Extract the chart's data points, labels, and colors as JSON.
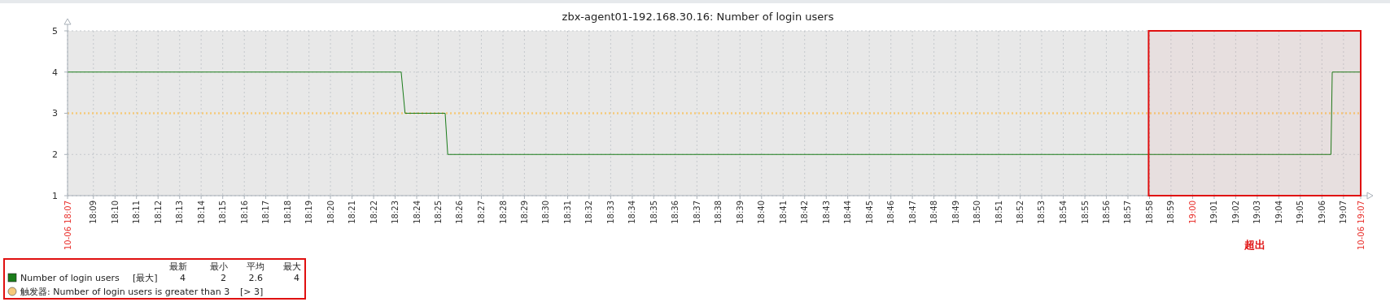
{
  "chart_data": {
    "type": "line",
    "title": "zbx-agent01-192.168.30.16: Number of login users",
    "x": [
      18.13,
      18.388,
      18.391,
      18.422,
      18.424,
      19.107,
      19.108,
      19.13
    ],
    "series": [
      {
        "name": "Number of login users",
        "color": "#1a7c1a",
        "values": [
          4,
          4,
          3,
          3,
          2,
          2,
          4,
          4
        ]
      }
    ],
    "xlim": [
      18.13,
      19.13
    ],
    "xticks": [
      {
        "value": 18.13,
        "label": "10-06 18:07"
      },
      {
        "value": 18.15,
        "label": "18:09"
      },
      {
        "value": 18.1667,
        "label": "18:10"
      },
      {
        "value": 18.1833,
        "label": "18:11"
      },
      {
        "value": 18.2,
        "label": "18:12"
      },
      {
        "value": 18.2167,
        "label": "18:13"
      },
      {
        "value": 18.2333,
        "label": "18:14"
      },
      {
        "value": 18.25,
        "label": "18:15"
      },
      {
        "value": 18.2667,
        "label": "18:16"
      },
      {
        "value": 18.2833,
        "label": "18:17"
      },
      {
        "value": 18.3,
        "label": "18:18"
      },
      {
        "value": 18.3167,
        "label": "18:19"
      },
      {
        "value": 18.3333,
        "label": "18:20"
      },
      {
        "value": 18.35,
        "label": "18:21"
      },
      {
        "value": 18.3667,
        "label": "18:22"
      },
      {
        "value": 18.3833,
        "label": "18:23"
      },
      {
        "value": 18.4,
        "label": "18:24"
      },
      {
        "value": 18.4167,
        "label": "18:25"
      },
      {
        "value": 18.4333,
        "label": "18:26"
      },
      {
        "value": 18.45,
        "label": "18:27"
      },
      {
        "value": 18.4667,
        "label": "18:28"
      },
      {
        "value": 18.4833,
        "label": "18:29"
      },
      {
        "value": 18.5,
        "label": "18:30"
      },
      {
        "value": 18.5167,
        "label": "18:31"
      },
      {
        "value": 18.5333,
        "label": "18:32"
      },
      {
        "value": 18.55,
        "label": "18:33"
      },
      {
        "value": 18.5667,
        "label": "18:34"
      },
      {
        "value": 18.5833,
        "label": "18:35"
      },
      {
        "value": 18.6,
        "label": "18:36"
      },
      {
        "value": 18.6167,
        "label": "18:37"
      },
      {
        "value": 18.6333,
        "label": "18:38"
      },
      {
        "value": 18.65,
        "label": "18:39"
      },
      {
        "value": 18.6667,
        "label": "18:40"
      },
      {
        "value": 18.6833,
        "label": "18:41"
      },
      {
        "value": 18.7,
        "label": "18:42"
      },
      {
        "value": 18.7167,
        "label": "18:43"
      },
      {
        "value": 18.7333,
        "label": "18:44"
      },
      {
        "value": 18.75,
        "label": "18:45"
      },
      {
        "value": 18.7667,
        "label": "18:46"
      },
      {
        "value": 18.7833,
        "label": "18:47"
      },
      {
        "value": 18.8,
        "label": "18:48"
      },
      {
        "value": 18.8167,
        "label": "18:49"
      },
      {
        "value": 18.8333,
        "label": "18:50"
      },
      {
        "value": 18.85,
        "label": "18:51"
      },
      {
        "value": 18.8667,
        "label": "18:52"
      },
      {
        "value": 18.8833,
        "label": "18:53"
      },
      {
        "value": 18.9,
        "label": "18:54"
      },
      {
        "value": 18.9167,
        "label": "18:55"
      },
      {
        "value": 18.9333,
        "label": "18:56"
      },
      {
        "value": 18.95,
        "label": "18:57"
      },
      {
        "value": 18.9667,
        "label": "18:58"
      },
      {
        "value": 18.9833,
        "label": "18:59"
      },
      {
        "value": 19,
        "label": "19:00"
      },
      {
        "value": 19.0167,
        "label": "19:01"
      },
      {
        "value": 19.0333,
        "label": "19:02"
      },
      {
        "value": 19.05,
        "label": "19:03"
      },
      {
        "value": 19.0667,
        "label": "19:04"
      },
      {
        "value": 19.0833,
        "label": "19:05"
      },
      {
        "value": 19.1,
        "label": "19:06"
      },
      {
        "value": 19.1167,
        "label": "19:07"
      },
      {
        "value": 19.13,
        "label": "10-06 19:07"
      }
    ],
    "ylim": [
      1,
      5
    ],
    "yticks": [
      1,
      2,
      3,
      4,
      5
    ],
    "grid": true,
    "legend": "bottom left",
    "line_style": "solid",
    "marker": "none",
    "ref_lines": [
      {
        "axis": "y",
        "value": 3,
        "label": "触发器: Number of login users is greater than 3",
        "color": "#f5c97a",
        "line_style": "dotted"
      }
    ],
    "bands": [
      {
        "axis": "x",
        "from": 18.966,
        "to": 19.13,
        "label": "超出",
        "color": "#e01010"
      }
    ],
    "annotations": [
      "最新",
      "最小",
      "平均",
      "最大",
      "[最大]",
      "4",
      "2",
      "2.6",
      "4",
      "[> 3]"
    ]
  }
}
